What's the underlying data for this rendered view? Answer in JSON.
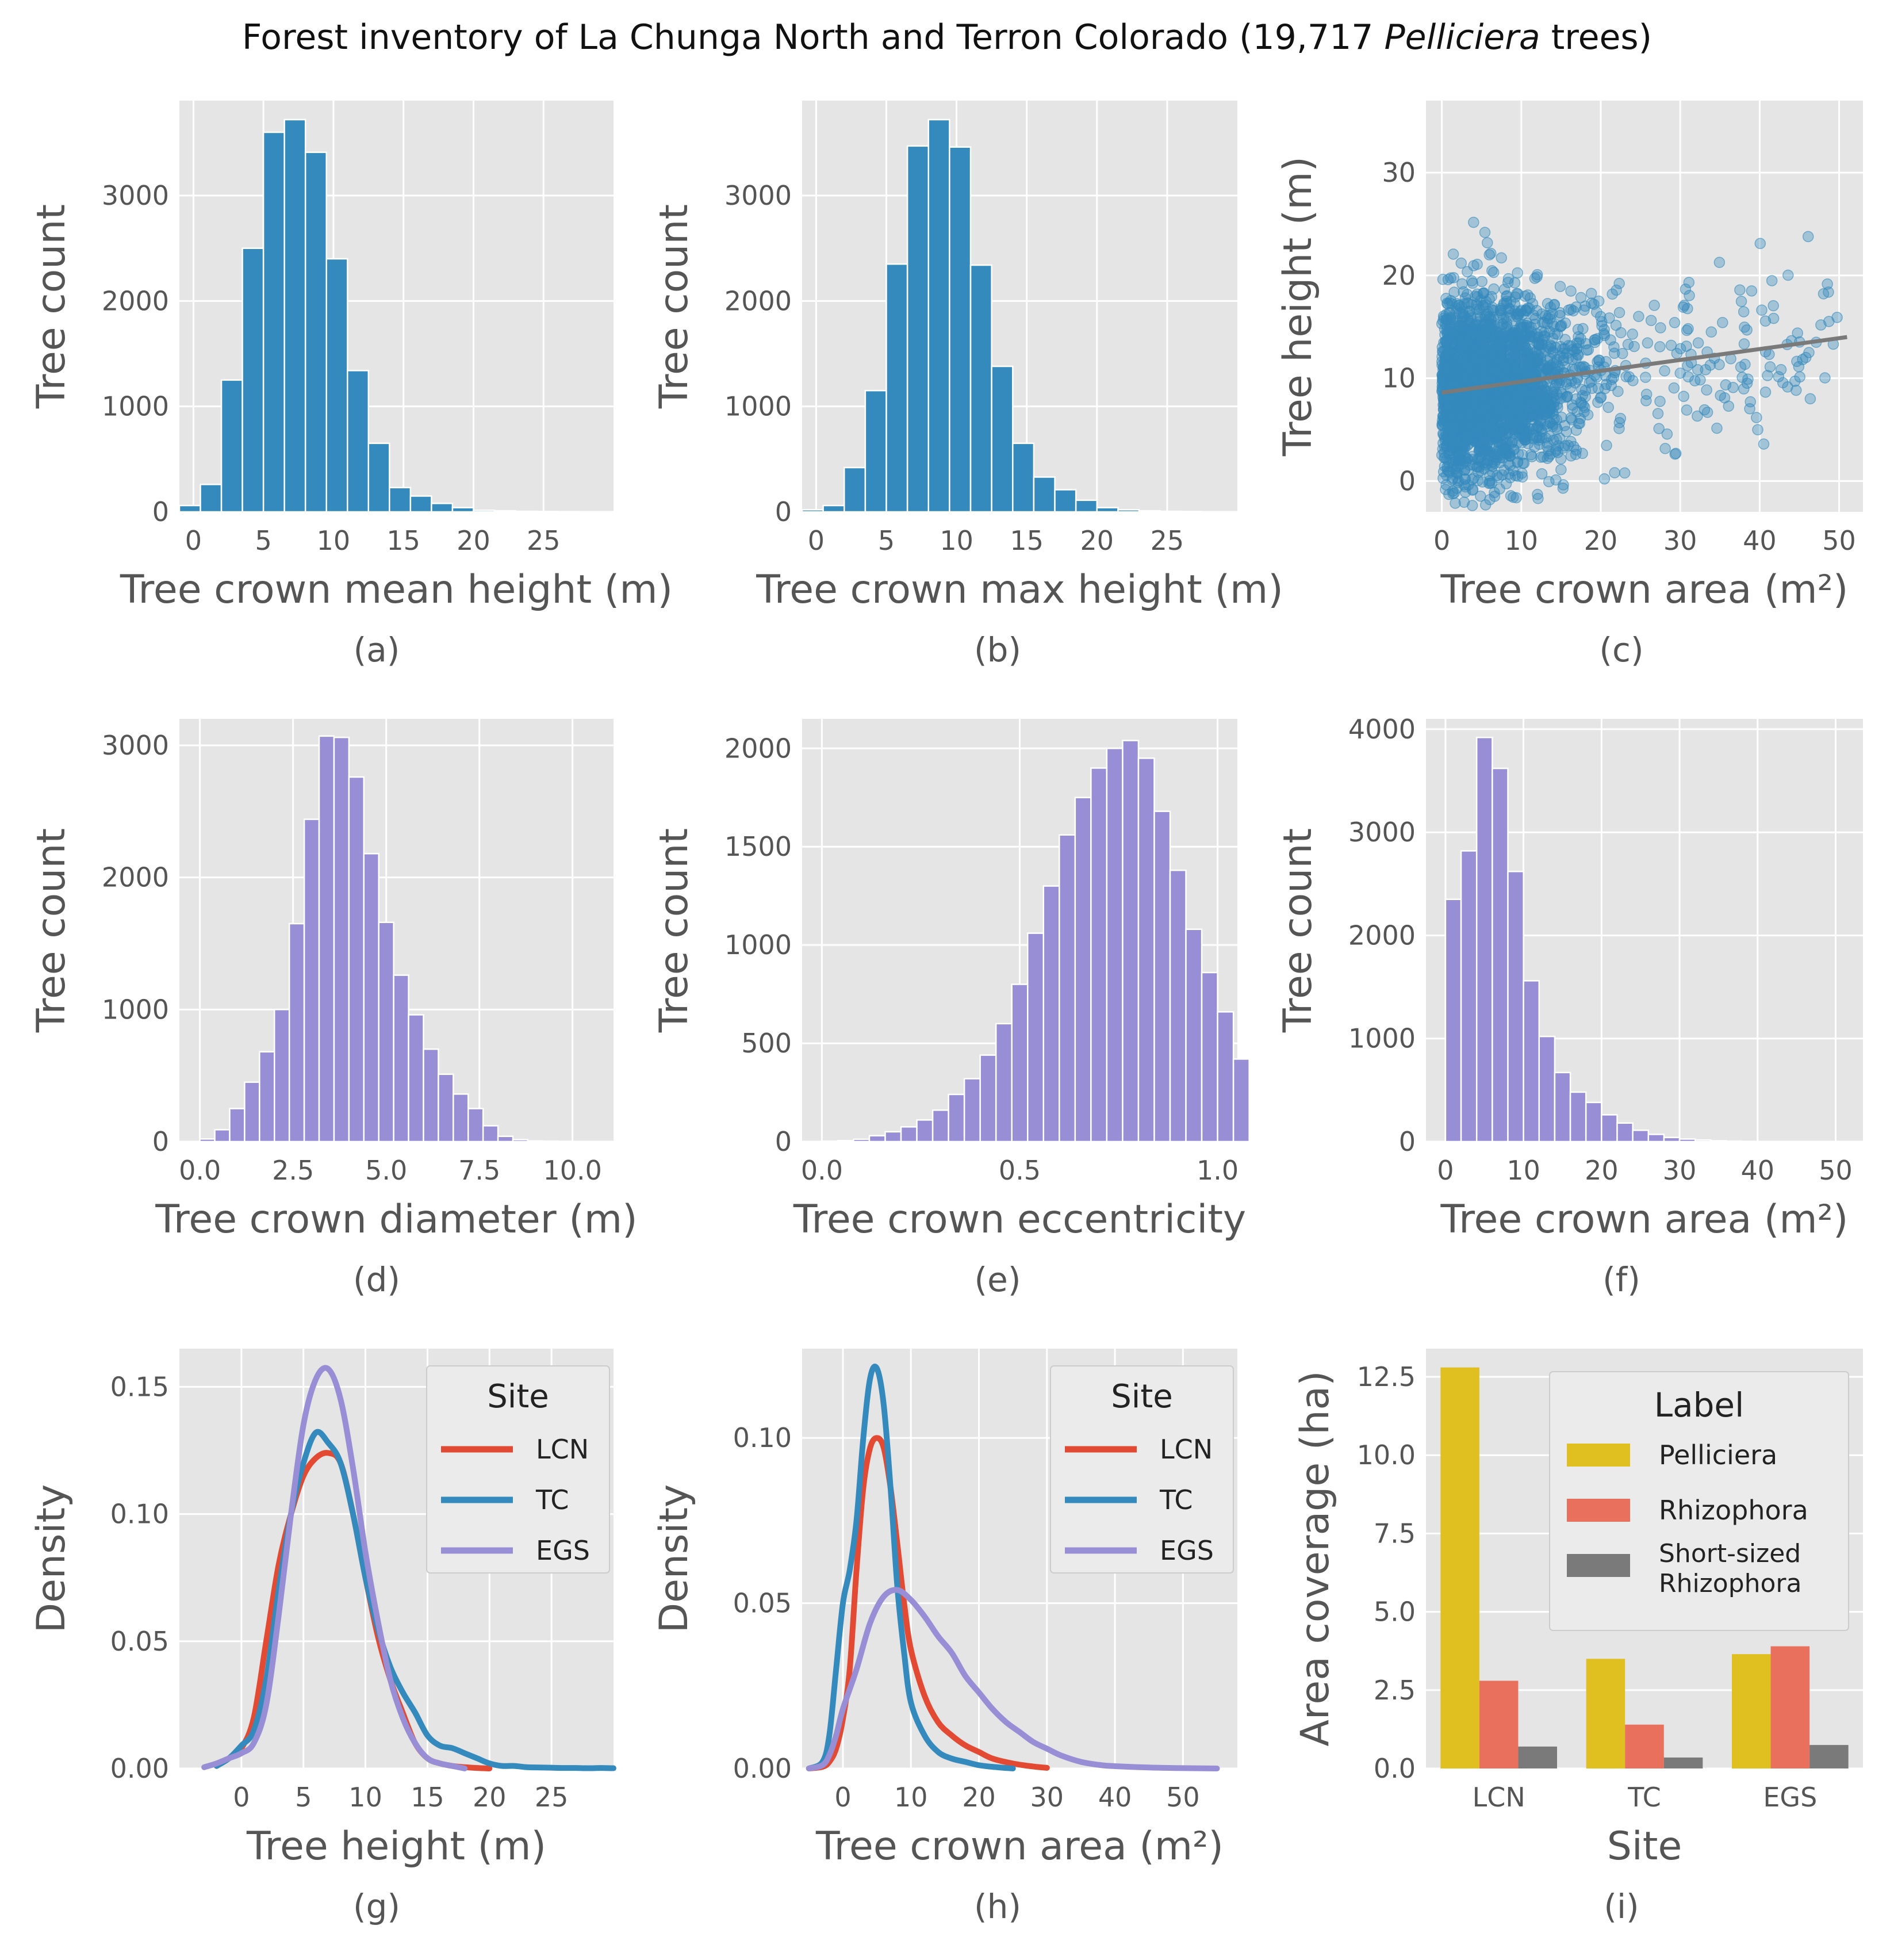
{
  "figure": {
    "title_prefix": "Forest inventory of La Chunga North and Terron Colorado (19,717 ",
    "title_italic": "Pelliciera",
    "title_suffix": " trees)",
    "colors": {
      "background": "#e5e5e5",
      "grid": "#ffffff",
      "blue": "#348abd",
      "purple": "#988ed5",
      "red": "#e24a33",
      "yellow": "#e0c021",
      "salmon": "#e8705c",
      "gray": "#7a7a7a",
      "text": "#555555"
    }
  },
  "chart_data": [
    {
      "id": "a",
      "type": "bar",
      "caption": "(a)",
      "title": "",
      "xlabel": "Tree crown mean height (m)",
      "ylabel": "Tree count",
      "xlim": [
        -1,
        30
      ],
      "ylim": [
        0,
        3900
      ],
      "xticks": [
        0,
        5,
        10,
        15,
        20,
        25
      ],
      "yticks": [
        0,
        1000,
        2000,
        3000
      ],
      "bin_start": -1,
      "bin_width": 1.5,
      "color": "blue",
      "values": [
        60,
        260,
        1250,
        2500,
        3600,
        3720,
        3410,
        2400,
        1340,
        650,
        230,
        150,
        80,
        40,
        15,
        10,
        5,
        3,
        2,
        1
      ]
    },
    {
      "id": "b",
      "type": "bar",
      "caption": "(b)",
      "title": "",
      "xlabel": "Tree crown max height (m)",
      "ylabel": "Tree count",
      "xlim": [
        -1,
        30
      ],
      "ylim": [
        0,
        3900
      ],
      "xticks": [
        0,
        5,
        10,
        15,
        20,
        25
      ],
      "yticks": [
        0,
        1000,
        2000,
        3000
      ],
      "bin_start": -1,
      "bin_width": 1.5,
      "color": "blue",
      "values": [
        20,
        60,
        420,
        1150,
        2350,
        3470,
        3720,
        3460,
        2340,
        1380,
        650,
        330,
        210,
        110,
        40,
        20,
        10,
        5,
        3,
        1
      ]
    },
    {
      "id": "c",
      "type": "scatter",
      "caption": "(c)",
      "title": "",
      "xlabel": "Tree crown area (m²)",
      "ylabel": "Tree height (m)",
      "xlim": [
        -2,
        53
      ],
      "ylim": [
        -3,
        37
      ],
      "xticks": [
        0,
        10,
        20,
        30,
        40,
        50
      ],
      "yticks": [
        0,
        10,
        20,
        30
      ],
      "color": "blue",
      "n_points": 19717,
      "regression": {
        "x": [
          0,
          51
        ],
        "y": [
          8.6,
          14.0
        ],
        "color": "gray"
      }
    },
    {
      "id": "d",
      "type": "bar",
      "caption": "(d)",
      "title": "",
      "xlabel": "Tree crown diameter (m)",
      "ylabel": "Tree count",
      "xlim": [
        -0.55,
        11.1
      ],
      "ylim": [
        0,
        3200
      ],
      "xticks": [
        0.0,
        2.5,
        5.0,
        7.5,
        10.0
      ],
      "yticks": [
        0,
        1000,
        2000,
        3000
      ],
      "bin_start": 0.0,
      "bin_width": 0.4,
      "color": "purple",
      "values": [
        20,
        90,
        250,
        450,
        680,
        1000,
        1650,
        2440,
        3070,
        3060,
        2760,
        2180,
        1660,
        1260,
        960,
        700,
        510,
        360,
        250,
        120,
        40,
        15,
        5,
        3,
        2,
        1,
        1
      ]
    },
    {
      "id": "e",
      "type": "bar",
      "caption": "(e)",
      "title": "",
      "xlabel": "Tree crown eccentricity",
      "ylabel": "Tree count",
      "xlim": [
        -0.05,
        1.05
      ],
      "ylim": [
        0,
        2150
      ],
      "xticks": [
        0.0,
        0.5,
        1.0
      ],
      "yticks": [
        0,
        500,
        1000,
        1500,
        2000
      ],
      "bin_start": 0.0,
      "bin_width": 0.04,
      "color": "purple",
      "values": [
        2,
        5,
        12,
        30,
        50,
        75,
        110,
        160,
        240,
        320,
        440,
        600,
        800,
        1060,
        1300,
        1560,
        1750,
        1900,
        2000,
        2040,
        1950,
        1680,
        1380,
        1080,
        860,
        660,
        420
      ]
    },
    {
      "id": "f",
      "type": "bar",
      "caption": "(f)",
      "title": "",
      "xlabel": "Tree crown area (m²)",
      "ylabel": "Tree count",
      "xlim": [
        -2.5,
        53.5
      ],
      "ylim": [
        0,
        4100
      ],
      "xticks": [
        0,
        10,
        20,
        30,
        40,
        50
      ],
      "yticks": [
        0,
        1000,
        2000,
        3000,
        4000
      ],
      "bin_start": 0,
      "bin_width": 2,
      "color": "purple",
      "values": [
        2350,
        2820,
        3920,
        3620,
        2620,
        1560,
        1020,
        670,
        480,
        380,
        260,
        180,
        110,
        70,
        40,
        25,
        15,
        8,
        4,
        2,
        1,
        1,
        1,
        0,
        0,
        0
      ]
    },
    {
      "id": "g",
      "type": "line",
      "caption": "(g)",
      "title": "",
      "xlabel": "Tree height (m)",
      "ylabel": "Density",
      "xlim": [
        -5,
        30
      ],
      "ylim": [
        0,
        0.165
      ],
      "xticks": [
        0,
        5,
        10,
        15,
        20,
        25
      ],
      "yticks": [
        0.0,
        0.05,
        0.1,
        0.15
      ],
      "ytick_labels": [
        "0.00",
        "0.05",
        "0.10",
        "0.15"
      ],
      "legend": {
        "title": "Site",
        "placement": "top-right"
      },
      "series": [
        {
          "name": "LCN",
          "color": "red",
          "x": [
            -2,
            -1,
            0,
            1,
            2,
            3,
            4,
            5,
            6,
            7,
            8,
            9,
            10,
            11,
            12,
            13,
            14,
            15,
            16,
            17,
            18,
            19,
            20
          ],
          "y": [
            0.001,
            0.004,
            0.008,
            0.02,
            0.05,
            0.08,
            0.1,
            0.115,
            0.122,
            0.124,
            0.12,
            0.1,
            0.075,
            0.052,
            0.035,
            0.022,
            0.01,
            0.004,
            0.002,
            0.001,
            0.0005,
            0.0002,
            0
          ]
        },
        {
          "name": "TC",
          "color": "blue",
          "x": [
            -2,
            -1,
            0,
            1,
            2,
            3,
            4,
            5,
            6,
            7,
            8,
            9,
            10,
            11,
            12,
            13,
            14,
            15,
            16,
            17,
            18,
            19,
            20,
            21,
            22,
            23,
            24,
            25,
            26,
            27,
            28,
            29,
            30
          ],
          "y": [
            0.001,
            0.004,
            0.009,
            0.015,
            0.035,
            0.07,
            0.1,
            0.12,
            0.132,
            0.128,
            0.12,
            0.1,
            0.075,
            0.055,
            0.04,
            0.03,
            0.022,
            0.013,
            0.009,
            0.008,
            0.006,
            0.004,
            0.002,
            0.001,
            0.001,
            0.0005,
            0.0004,
            0.0003,
            0.0002,
            0.0002,
            0.0001,
            0.0002,
            0.0001
          ]
        },
        {
          "name": "EGS",
          "color": "purple",
          "x": [
            -3,
            -2,
            -1,
            0,
            1,
            2,
            3,
            4,
            5,
            6,
            7,
            8,
            9,
            10,
            11,
            12,
            13,
            14,
            15,
            16,
            17,
            18
          ],
          "y": [
            0.0005,
            0.002,
            0.004,
            0.006,
            0.01,
            0.025,
            0.06,
            0.1,
            0.135,
            0.153,
            0.157,
            0.145,
            0.118,
            0.085,
            0.058,
            0.035,
            0.02,
            0.01,
            0.004,
            0.002,
            0.001,
            0
          ]
        }
      ]
    },
    {
      "id": "h",
      "type": "line",
      "caption": "(h)",
      "title": "",
      "xlabel": "Tree crown area (m²)",
      "ylabel": "Density",
      "xlim": [
        -6,
        58
      ],
      "ylim": [
        0,
        0.127
      ],
      "xticks": [
        0,
        10,
        20,
        30,
        40,
        50
      ],
      "yticks": [
        0.0,
        0.05,
        0.1
      ],
      "ytick_labels": [
        "0.00",
        "0.05",
        "0.10"
      ],
      "legend": {
        "title": "Site",
        "placement": "top-right"
      },
      "series": [
        {
          "name": "LCN",
          "color": "red",
          "x": [
            -5,
            -3,
            -2,
            -1,
            0,
            1,
            2,
            3,
            4,
            5,
            6,
            7,
            8,
            9,
            10,
            12,
            14,
            16,
            18,
            20,
            22,
            25,
            28,
            30
          ],
          "y": [
            0,
            0.0005,
            0.002,
            0.006,
            0.015,
            0.03,
            0.06,
            0.085,
            0.097,
            0.1,
            0.097,
            0.085,
            0.068,
            0.05,
            0.036,
            0.022,
            0.014,
            0.01,
            0.007,
            0.005,
            0.003,
            0.0015,
            0.0006,
            0.0002
          ]
        },
        {
          "name": "TC",
          "color": "blue",
          "x": [
            -5,
            -3,
            -2,
            -1,
            0,
            1,
            2,
            3,
            4,
            5,
            6,
            7,
            8,
            9,
            10,
            12,
            14,
            16,
            18,
            20,
            22,
            25
          ],
          "y": [
            0,
            0.002,
            0.01,
            0.03,
            0.05,
            0.06,
            0.075,
            0.1,
            0.118,
            0.121,
            0.11,
            0.085,
            0.055,
            0.035,
            0.02,
            0.01,
            0.005,
            0.003,
            0.002,
            0.001,
            0.0005,
            0
          ]
        },
        {
          "name": "EGS",
          "color": "purple",
          "x": [
            -5,
            -3,
            -2,
            -1,
            0,
            2,
            4,
            6,
            8,
            10,
            12,
            14,
            16,
            18,
            20,
            22,
            24,
            26,
            28,
            30,
            32,
            35,
            38,
            40,
            45,
            50,
            55
          ],
          "y": [
            0,
            0.001,
            0.004,
            0.01,
            0.018,
            0.03,
            0.044,
            0.052,
            0.054,
            0.051,
            0.046,
            0.04,
            0.035,
            0.028,
            0.023,
            0.018,
            0.014,
            0.011,
            0.008,
            0.006,
            0.004,
            0.002,
            0.001,
            0.0007,
            0.0003,
            0.0001,
            0
          ]
        }
      ]
    },
    {
      "id": "i",
      "type": "bar",
      "caption": "(i)",
      "grouped": true,
      "title": "",
      "xlabel": "Site",
      "ylabel": "Area coverage (ha)",
      "ylim": [
        0,
        13.4
      ],
      "categories": [
        "LCN",
        "TC",
        "EGS"
      ],
      "yticks": [
        0.0,
        2.5,
        5.0,
        7.5,
        10.0,
        12.5
      ],
      "ytick_labels": [
        "0.0",
        "2.5",
        "5.0",
        "7.5",
        "10.0",
        "12.5"
      ],
      "legend": {
        "title": "Label",
        "placement": "top-right"
      },
      "series": [
        {
          "name": "Pelliciera",
          "color": "yellow",
          "values": [
            12.8,
            3.5,
            3.65
          ]
        },
        {
          "name": "Rhizophora",
          "color": "salmon",
          "values": [
            2.8,
            1.4,
            3.9
          ]
        },
        {
          "name": "Short-sized Rhizophora",
          "name_lines": [
            "Short-sized",
            "Rhizophora"
          ],
          "color": "gray",
          "values": [
            0.7,
            0.35,
            0.75
          ]
        }
      ]
    }
  ]
}
